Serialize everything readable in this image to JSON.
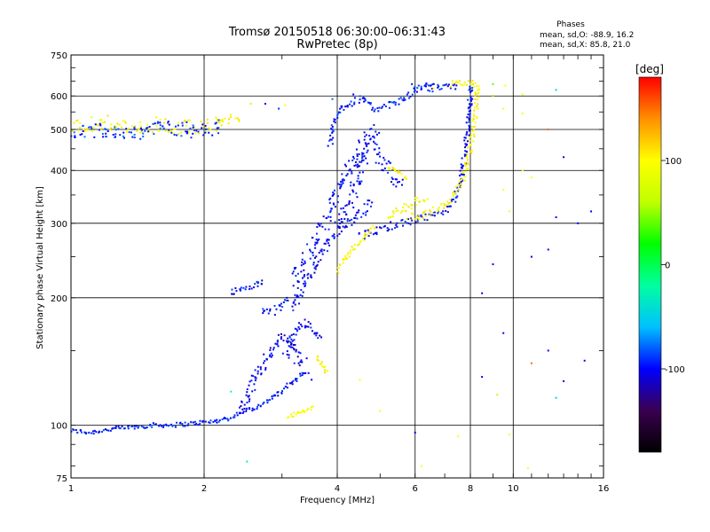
{
  "chart_data": {
    "type": "scatter",
    "title": "Tromsø 20150518 06:30:00–06:31:43",
    "subtitle": "RwPretec (8p)",
    "xlabel": "Frequency [MHz]",
    "ylabel": "Stationary phase Virtual Height [km]",
    "x_scale": "log",
    "y_scale": "log",
    "xlim": [
      1,
      16
    ],
    "ylim": [
      75,
      750
    ],
    "x_ticks": [
      {
        "value": 1,
        "label": "1"
      },
      {
        "value": 2,
        "label": "2"
      },
      {
        "value": 4,
        "label": "4"
      },
      {
        "value": 6,
        "label": "6"
      },
      {
        "value": 8,
        "label": "8"
      },
      {
        "value": 10,
        "label": "10"
      },
      {
        "value": 16,
        "label": "16"
      }
    ],
    "y_ticks": [
      {
        "value": 75,
        "label": "75"
      },
      {
        "value": 100,
        "label": "100"
      },
      {
        "value": 200,
        "label": "200"
      },
      {
        "value": 300,
        "label": "300"
      },
      {
        "value": 400,
        "label": "400"
      },
      {
        "value": 500,
        "label": "500"
      },
      {
        "value": 600,
        "label": "600"
      },
      {
        "value": 750,
        "label": "750"
      }
    ],
    "grid": true,
    "phase_info": {
      "heading": "Phases",
      "line_o": "mean, sd,O: -88.9, 16.2",
      "line_x": "mean, sd,X: 85.8, 21.0"
    },
    "colorbar": {
      "label": "[deg]",
      "range": [
        -180,
        180
      ],
      "ticks": [
        {
          "value": 100,
          "label": "100"
        },
        {
          "value": 0,
          "label": "0"
        },
        {
          "value": -100,
          "label": "-100"
        }
      ],
      "colors": [
        "#000000",
        "#3a0050",
        "#0000ff",
        "#00c0ff",
        "#00ffa0",
        "#00ff00",
        "#c0ff00",
        "#ffff00",
        "#ff9000",
        "#ff0000"
      ]
    },
    "series_polylines": [
      {
        "name": "",
        "phase": -95,
        "spread": 0.012,
        "points": [
          [
            1.0,
            97
          ],
          [
            1.1,
            96
          ],
          [
            1.25,
            98
          ],
          [
            1.4,
            99
          ],
          [
            1.55,
            100
          ],
          [
            1.7,
            100
          ],
          [
            1.9,
            101
          ],
          [
            2.1,
            102
          ],
          [
            2.3,
            104
          ],
          [
            2.45,
            108
          ],
          [
            2.6,
            110
          ],
          [
            2.75,
            113
          ],
          [
            2.85,
            116
          ],
          [
            3.0,
            120
          ],
          [
            3.15,
            126
          ],
          [
            3.3,
            131
          ],
          [
            3.45,
            134
          ]
        ]
      },
      {
        "name": "",
        "phase": -105,
        "spread": 0.03,
        "points": [
          [
            2.4,
            108
          ],
          [
            2.5,
            114
          ],
          [
            2.55,
            122
          ],
          [
            2.6,
            130
          ],
          [
            2.7,
            138
          ],
          [
            2.8,
            146
          ],
          [
            2.9,
            155
          ],
          [
            3.0,
            162
          ],
          [
            3.1,
            160
          ],
          [
            3.2,
            150
          ],
          [
            3.3,
            145
          ],
          [
            3.4,
            140
          ]
        ]
      },
      {
        "name": "",
        "phase": -100,
        "spread": 0.018,
        "points": [
          [
            2.3,
            206
          ],
          [
            2.45,
            210
          ],
          [
            2.6,
            214
          ],
          [
            2.75,
            218
          ]
        ]
      },
      {
        "name": "",
        "phase": -95,
        "spread": 0.02,
        "points": [
          [
            2.7,
            187
          ],
          [
            2.85,
            185
          ],
          [
            3.0,
            192
          ],
          [
            3.1,
            200
          ]
        ]
      },
      {
        "name": "",
        "phase": -100,
        "spread": 0.03,
        "points": [
          [
            3.15,
            190
          ],
          [
            3.3,
            205
          ],
          [
            3.45,
            225
          ],
          [
            3.6,
            245
          ],
          [
            3.8,
            268
          ],
          [
            4.0,
            285
          ],
          [
            4.2,
            300
          ],
          [
            4.4,
            310
          ],
          [
            4.6,
            325
          ],
          [
            4.8,
            340
          ]
        ]
      },
      {
        "name": "",
        "phase": -100,
        "spread": 0.04,
        "points": [
          [
            3.2,
            215
          ],
          [
            3.3,
            235
          ],
          [
            3.45,
            255
          ],
          [
            3.6,
            275
          ],
          [
            3.75,
            300
          ],
          [
            3.9,
            330
          ],
          [
            4.0,
            355
          ],
          [
            4.15,
            385
          ],
          [
            4.3,
            410
          ],
          [
            4.5,
            440
          ],
          [
            4.6,
            470
          ],
          [
            4.75,
            500
          ],
          [
            4.9,
            480
          ]
        ]
      },
      {
        "name": "",
        "phase": -100,
        "spread": 0.04,
        "points": [
          [
            4.0,
            290
          ],
          [
            4.2,
            320
          ],
          [
            4.35,
            360
          ],
          [
            4.5,
            400
          ],
          [
            4.65,
            440
          ],
          [
            4.8,
            460
          ],
          [
            5.0,
            430
          ],
          [
            5.2,
            400
          ],
          [
            5.4,
            380
          ],
          [
            5.6,
            370
          ]
        ]
      },
      {
        "name": "",
        "phase": -95,
        "spread": 0.02,
        "points": [
          [
            3.85,
            460
          ],
          [
            3.9,
            490
          ],
          [
            3.95,
            520
          ],
          [
            4.0,
            545
          ],
          [
            4.1,
            565
          ],
          [
            4.25,
            575
          ],
          [
            4.4,
            585
          ],
          [
            4.55,
            595
          ],
          [
            4.7,
            570
          ],
          [
            4.85,
            560
          ],
          [
            5.0,
            565
          ],
          [
            5.2,
            570
          ],
          [
            5.5,
            580
          ],
          [
            5.8,
            600
          ],
          [
            6.0,
            620
          ],
          [
            6.3,
            630
          ],
          [
            6.6,
            625
          ]
        ]
      },
      {
        "name": "",
        "phase": -100,
        "spread": 0.02,
        "points": [
          [
            4.5,
            280
          ],
          [
            4.8,
            285
          ],
          [
            5.1,
            292
          ],
          [
            5.4,
            298
          ],
          [
            5.8,
            303
          ],
          [
            6.2,
            307
          ],
          [
            6.6,
            312
          ],
          [
            7.0,
            322
          ],
          [
            7.3,
            338
          ],
          [
            7.5,
            360
          ],
          [
            7.65,
            390
          ],
          [
            7.75,
            430
          ],
          [
            7.85,
            480
          ],
          [
            7.95,
            540
          ],
          [
            8.0,
            600
          ],
          [
            8.05,
            640
          ]
        ]
      },
      {
        "name": "",
        "phase": -95,
        "spread": 0.015,
        "points": [
          [
            6.3,
            640
          ],
          [
            6.6,
            632
          ],
          [
            6.9,
            628
          ],
          [
            7.2,
            633
          ],
          [
            7.5,
            625
          ]
        ]
      },
      {
        "name": "",
        "phase": -100,
        "spread": 0.025,
        "points": [
          [
            3.05,
            145
          ],
          [
            3.2,
            165
          ],
          [
            3.35,
            175
          ],
          [
            3.5,
            170
          ],
          [
            3.6,
            165
          ],
          [
            3.7,
            160
          ]
        ]
      },
      {
        "name": "",
        "phase": 100,
        "spread": 0.015,
        "points": [
          [
            4.0,
            232
          ],
          [
            4.15,
            245
          ],
          [
            4.3,
            258
          ],
          [
            4.5,
            272
          ],
          [
            4.7,
            285
          ],
          [
            4.85,
            295
          ]
        ]
      },
      {
        "name": "",
        "phase": 100,
        "spread": 0.02,
        "points": [
          [
            5.2,
            310
          ],
          [
            5.5,
            320
          ],
          [
            5.8,
            330
          ],
          [
            6.1,
            340
          ],
          [
            6.4,
            345
          ]
        ]
      },
      {
        "name": "",
        "phase": 100,
        "spread": 0.02,
        "points": [
          [
            5.8,
            310
          ],
          [
            6.2,
            312
          ],
          [
            6.6,
            320
          ],
          [
            7.0,
            332
          ],
          [
            7.4,
            352
          ],
          [
            7.7,
            380
          ],
          [
            7.9,
            420
          ],
          [
            8.05,
            470
          ],
          [
            8.15,
            520
          ],
          [
            8.25,
            570
          ],
          [
            8.3,
            620
          ],
          [
            8.35,
            645
          ]
        ]
      },
      {
        "name": "",
        "phase": 100,
        "spread": 0.015,
        "points": [
          [
            7.2,
            640
          ],
          [
            7.5,
            645
          ],
          [
            7.8,
            640
          ],
          [
            8.1,
            645
          ],
          [
            8.25,
            635
          ]
        ]
      },
      {
        "name": "",
        "phase": 100,
        "spread": 0.015,
        "points": [
          [
            5.2,
            410
          ],
          [
            5.4,
            400
          ],
          [
            5.6,
            390
          ],
          [
            5.8,
            385
          ]
        ]
      },
      {
        "name": "",
        "phase": 100,
        "spread": 0.012,
        "points": [
          [
            3.6,
            145
          ],
          [
            3.7,
            138
          ],
          [
            3.8,
            132
          ]
        ]
      },
      {
        "name": "",
        "phase": 95,
        "spread": 0.01,
        "points": [
          [
            3.1,
            104
          ],
          [
            3.2,
            106
          ],
          [
            3.4,
            108
          ],
          [
            3.55,
            110
          ]
        ]
      },
      {
        "name": "",
        "phase": 100,
        "spread": 0.04,
        "points": [
          [
            1.0,
            510
          ],
          [
            1.2,
            520
          ],
          [
            1.4,
            500
          ],
          [
            1.6,
            515
          ],
          [
            1.8,
            505
          ],
          [
            2.0,
            510
          ],
          [
            2.2,
            520
          ],
          [
            2.4,
            530
          ]
        ]
      },
      {
        "name": "",
        "phase": -90,
        "spread": 0.04,
        "points": [
          [
            1.0,
            495
          ],
          [
            1.2,
            500
          ],
          [
            1.4,
            490
          ],
          [
            1.6,
            505
          ],
          [
            1.8,
            500
          ],
          [
            2.0,
            495
          ],
          [
            2.2,
            510
          ]
        ]
      }
    ],
    "scattered_points": [
      [
        2.55,
        575,
        60
      ],
      [
        2.75,
        575,
        -100
      ],
      [
        2.95,
        560,
        -90
      ],
      [
        3.05,
        570,
        100
      ],
      [
        3.9,
        590,
        -80
      ],
      [
        4.35,
        605,
        -100
      ],
      [
        5.9,
        640,
        -95
      ],
      [
        6.2,
        625,
        -100
      ],
      [
        6.6,
        625,
        100
      ],
      [
        9.0,
        640,
        40
      ],
      [
        9.6,
        635,
        100
      ],
      [
        10.5,
        605,
        100
      ],
      [
        12.5,
        620,
        -50
      ],
      [
        9.0,
        600,
        120
      ],
      [
        9.5,
        560,
        100
      ],
      [
        10.5,
        545,
        90
      ],
      [
        12.0,
        500,
        150
      ],
      [
        13.0,
        430,
        -100
      ],
      [
        10.5,
        400,
        100
      ],
      [
        11.0,
        385,
        100
      ],
      [
        9.5,
        360,
        100
      ],
      [
        9.8,
        320,
        100
      ],
      [
        12.5,
        310,
        -100
      ],
      [
        14.0,
        300,
        -100
      ],
      [
        15.0,
        320,
        -100
      ],
      [
        11.0,
        250,
        -100
      ],
      [
        12.0,
        260,
        -100
      ],
      [
        9.0,
        240,
        -100
      ],
      [
        8.5,
        205,
        -100
      ],
      [
        9.5,
        165,
        -100
      ],
      [
        11.0,
        140,
        150
      ],
      [
        12.0,
        150,
        -100
      ],
      [
        13.0,
        127,
        -100
      ],
      [
        14.5,
        142,
        -100
      ],
      [
        8.5,
        130,
        -100
      ],
      [
        9.2,
        118,
        60
      ],
      [
        12.5,
        116,
        -50
      ],
      [
        6.0,
        96,
        -100
      ],
      [
        9.8,
        95,
        100
      ],
      [
        7.5,
        94,
        100
      ],
      [
        10.8,
        79,
        100
      ],
      [
        6.2,
        80,
        100
      ],
      [
        2.5,
        82,
        -30
      ],
      [
        5.0,
        108,
        100
      ],
      [
        2.3,
        120,
        -20
      ],
      [
        3.2,
        140,
        -90
      ],
      [
        3.5,
        128,
        -100
      ],
      [
        4.5,
        128,
        100
      ]
    ]
  }
}
